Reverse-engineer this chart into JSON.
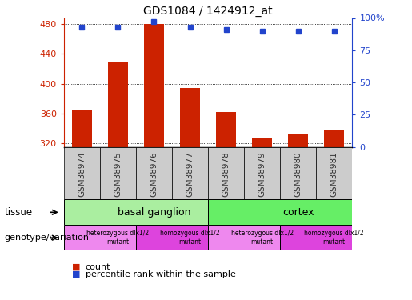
{
  "title": "GDS1084 / 1424912_at",
  "samples": [
    "GSM38974",
    "GSM38975",
    "GSM38976",
    "GSM38977",
    "GSM38978",
    "GSM38979",
    "GSM38980",
    "GSM38981"
  ],
  "counts": [
    365,
    430,
    480,
    394,
    362,
    328,
    332,
    338
  ],
  "percentiles": [
    93,
    93,
    97,
    93,
    91,
    90,
    90,
    90
  ],
  "ymin": 315,
  "ymax": 488,
  "yticks": [
    320,
    360,
    400,
    440,
    480
  ],
  "y2ticks": [
    0,
    25,
    50,
    75,
    100
  ],
  "y2tick_labels": [
    "0",
    "25",
    "50",
    "75",
    "100%"
  ],
  "bar_color": "#cc2200",
  "dot_color": "#2244cc",
  "tissue_row": [
    {
      "label": "basal ganglion",
      "start": 0,
      "end": 4,
      "color": "#aaeea0"
    },
    {
      "label": "cortex",
      "start": 4,
      "end": 8,
      "color": "#66ee66"
    }
  ],
  "genotype_row": [
    {
      "label": "heterozygous dlx1/2\nmutant",
      "start": 0,
      "end": 2,
      "color": "#ee88ee"
    },
    {
      "label": "homozygous dlx1/2\nmutant",
      "start": 2,
      "end": 4,
      "color": "#dd44dd"
    },
    {
      "label": "heterozygous dlx1/2\nmutant",
      "start": 4,
      "end": 6,
      "color": "#ee88ee"
    },
    {
      "label": "homozygous dlx1/2\nmutant",
      "start": 6,
      "end": 8,
      "color": "#dd44dd"
    }
  ],
  "ylabel_left_color": "#cc2200",
  "ylabel_right_color": "#2244cc",
  "tissue_label": "tissue",
  "genotype_label": "genotype/variation",
  "legend_count": "count",
  "legend_percentile": "percentile rank within the sample",
  "sample_box_color": "#cccccc",
  "sample_text_color": "#333333"
}
